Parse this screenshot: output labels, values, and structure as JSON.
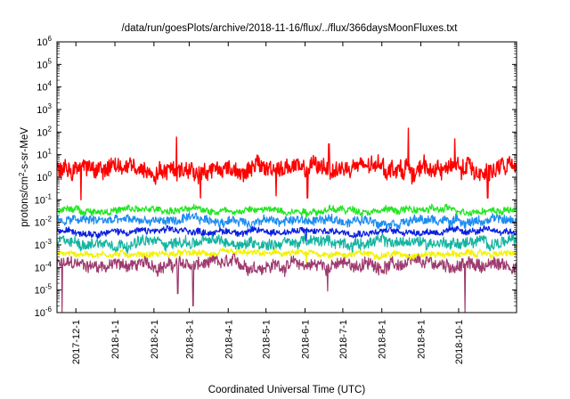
{
  "chart_data": {
    "type": "line",
    "title": "/data/run/goesPlots/archive/2018-11-16/flux/../flux/366daysMoonFluxes.txt",
    "xlabel": "Coordinated Universal Time (UTC)",
    "ylabel": {
      "prefix": "protons/cm",
      "sup": "2",
      "suffix": "-s-sr-MeV"
    },
    "yscale": "log",
    "ylim": [
      1e-06,
      1000000.0
    ],
    "xlim": [
      "2017-11-16",
      "2018-11-16"
    ],
    "y_ticks": [
      {
        "value": 1e-06,
        "base": "10",
        "exp": "-6"
      },
      {
        "value": 1e-05,
        "base": "10",
        "exp": "-5"
      },
      {
        "value": 0.0001,
        "base": "10",
        "exp": "-4"
      },
      {
        "value": 0.001,
        "base": "10",
        "exp": "-3"
      },
      {
        "value": 0.01,
        "base": "10",
        "exp": "-2"
      },
      {
        "value": 0.1,
        "base": "10",
        "exp": "-1"
      },
      {
        "value": 1.0,
        "base": "10",
        "exp": "0"
      },
      {
        "value": 10.0,
        "base": "10",
        "exp": "1"
      },
      {
        "value": 100.0,
        "base": "10",
        "exp": "2"
      },
      {
        "value": 1000.0,
        "base": "10",
        "exp": "3"
      },
      {
        "value": 10000.0,
        "base": "10",
        "exp": "4"
      },
      {
        "value": 100000.0,
        "base": "10",
        "exp": "5"
      },
      {
        "value": 1000000.0,
        "base": "10",
        "exp": "6"
      }
    ],
    "x_ticks": [
      {
        "date": "2017-12-01",
        "label": "2017-12-1"
      },
      {
        "date": "2018-01-01",
        "label": "2018-1-1"
      },
      {
        "date": "2018-02-01",
        "label": "2018-2-1"
      },
      {
        "date": "2018-03-01",
        "label": "2018-3-1"
      },
      {
        "date": "2018-04-01",
        "label": "2018-4-1"
      },
      {
        "date": "2018-05-01",
        "label": "2018-5-1"
      },
      {
        "date": "2018-06-01",
        "label": "2018-6-1"
      },
      {
        "date": "2018-07-01",
        "label": "2018-7-1"
      },
      {
        "date": "2018-08-01",
        "label": "2018-8-1"
      },
      {
        "date": "2018-09-01",
        "label": "2018-9-1"
      },
      {
        "date": "2018-10-01",
        "label": "2018-10-1"
      }
    ],
    "grid": false,
    "legend": "none",
    "series": [
      {
        "color": "#9e3a6e",
        "level": 0.00013,
        "noise_decades": 0.25,
        "spikes": [
          {
            "date": "2017-11-20",
            "value": 1e-06
          },
          {
            "date": "2018-02-20",
            "value": 7e-06
          },
          {
            "date": "2018-03-04",
            "value": 2e-06
          },
          {
            "date": "2018-06-19",
            "value": 9e-06
          },
          {
            "date": "2018-10-06",
            "value": 1e-06
          }
        ]
      },
      {
        "color": "#f2f200",
        "level": 0.0004,
        "noise_decades": 0.12,
        "spikes": [
          {
            "date": "2018-06-02",
            "value": 0.00015
          }
        ]
      },
      {
        "color": "#14b4a0",
        "level": 0.0013,
        "noise_decades": 0.22,
        "spikes": []
      },
      {
        "color": "#0a1fe0",
        "level": 0.004,
        "noise_decades": 0.13,
        "spikes": [
          {
            "date": "2018-06-02",
            "value": 0.0015
          }
        ]
      },
      {
        "color": "#1e8cf0",
        "level": 0.012,
        "noise_decades": 0.18,
        "spikes": []
      },
      {
        "color": "#22e622",
        "level": 0.035,
        "noise_decades": 0.14,
        "spikes": [
          {
            "date": "2018-06-02",
            "value": 0.015
          }
        ]
      },
      {
        "color": "#ff0000",
        "level": 2.5,
        "noise_decades": 0.35,
        "spikes": [
          {
            "date": "2017-12-05",
            "value": 0.1
          },
          {
            "date": "2018-02-19",
            "value": 60
          },
          {
            "date": "2018-03-10",
            "value": 0.12
          },
          {
            "date": "2018-05-09",
            "value": 0.15
          },
          {
            "date": "2018-06-03",
            "value": 0.12
          },
          {
            "date": "2018-06-20",
            "value": 30
          },
          {
            "date": "2018-08-22",
            "value": 150
          },
          {
            "date": "2018-09-28",
            "value": 50
          },
          {
            "date": "2018-10-24",
            "value": 0.12
          }
        ]
      }
    ]
  }
}
